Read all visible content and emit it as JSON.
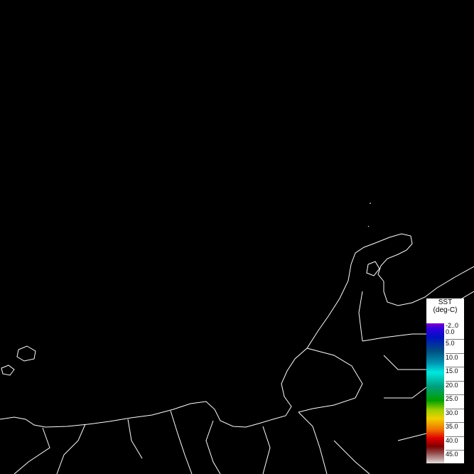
{
  "legend": {
    "title": "SST",
    "unit": "(deg-C)",
    "labels": [
      "-2..0",
      "0.0",
      "5.0",
      "10.0",
      "15.0",
      "20.0",
      "25.0",
      "30.0",
      "35.0",
      "40.0",
      "45.0"
    ],
    "colors": [
      "#7a00c0",
      "#0010c0",
      "#005080",
      "#00e8e0",
      "#00a000",
      "#f0d000",
      "#e00000",
      "#800000",
      "#e8e0e0"
    ]
  },
  "map": {
    "background": "#000000",
    "coastline_color": "#ffffff"
  }
}
